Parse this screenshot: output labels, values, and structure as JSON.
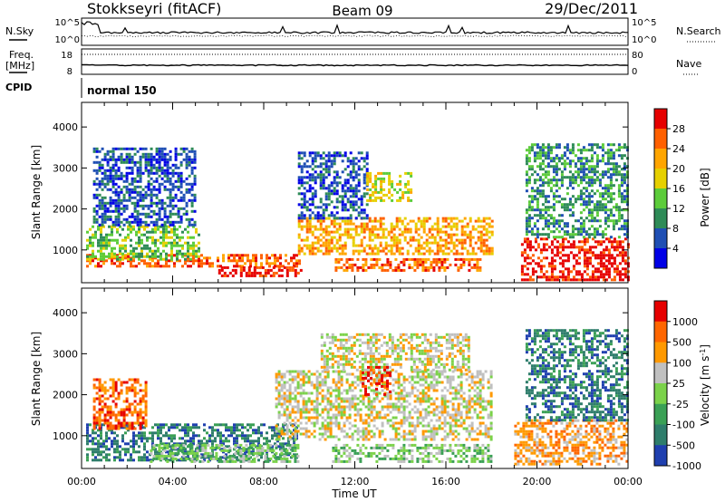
{
  "header": {
    "station": "Stokkseyri (fitACF)",
    "beam": "Beam 09",
    "date": "29/Dec/2011"
  },
  "summary_panels": {
    "nsky": {
      "left_label": "N.Sky",
      "left_ticks": [
        "10^5",
        "10^0"
      ],
      "right_ticks": [
        "10^5",
        "10^0"
      ],
      "right_label": "N.Search"
    },
    "freq": {
      "left_label_line1": "Freq.",
      "left_label_line2": "[MHz]",
      "left_ticks": [
        "18",
        "8"
      ],
      "right_ticks": [
        "80",
        "0"
      ],
      "right_label": "Nave"
    },
    "cpid": {
      "label": "CPID",
      "value": "normal 150"
    }
  },
  "chart_data": [
    {
      "type": "heatmap",
      "name": "power",
      "ylabel": "Slant Range [km]",
      "yticks": [
        "1000",
        "2000",
        "3000",
        "4000"
      ],
      "ylim": [
        200,
        4600
      ],
      "xlim": [
        0,
        24
      ],
      "colorbar": {
        "title": "Power [dB]",
        "ticks": [
          "4",
          "8",
          "12",
          "16",
          "20",
          "24",
          "28"
        ],
        "colors": [
          "#0000e6",
          "#1f4fb4",
          "#2e8b57",
          "#5ccc3a",
          "#e6d000",
          "#ffa500",
          "#ff6000",
          "#e60000"
        ]
      },
      "regions": [
        {
          "t": [
            0.2,
            9.6
          ],
          "r": [
            600,
            900
          ],
          "level": 6
        },
        {
          "t": [
            6.0,
            9.6
          ],
          "r": [
            350,
            600
          ],
          "level": 7
        },
        {
          "t": [
            0.2,
            5.2
          ],
          "r": [
            800,
            1600
          ],
          "level": 3
        },
        {
          "t": [
            0.5,
            5.0
          ],
          "r": [
            1600,
            3500
          ],
          "level": 1
        },
        {
          "t": [
            9.5,
            18.0
          ],
          "r": [
            900,
            1800
          ],
          "level": 5
        },
        {
          "t": [
            11.0,
            17.5
          ],
          "r": [
            500,
            800
          ],
          "level": 6
        },
        {
          "t": [
            9.5,
            12.5
          ],
          "r": [
            1800,
            3400
          ],
          "level": 1
        },
        {
          "t": [
            12.5,
            14.5
          ],
          "r": [
            2200,
            2900
          ],
          "level": 4
        },
        {
          "t": [
            19.3,
            24.0
          ],
          "r": [
            300,
            1300
          ],
          "level": 7
        },
        {
          "t": [
            19.5,
            24.0
          ],
          "r": [
            1300,
            3600
          ],
          "level": 2
        }
      ]
    },
    {
      "type": "heatmap",
      "name": "velocity",
      "ylabel": "Slant Range [km]",
      "yticks": [
        "1000",
        "2000",
        "3000",
        "4000"
      ],
      "ylim": [
        200,
        4600
      ],
      "xlim": [
        0,
        24
      ],
      "xlabel": "Time UT",
      "xticks": [
        "00:00",
        "04:00",
        "08:00",
        "12:00",
        "16:00",
        "20:00",
        "00:00"
      ],
      "colorbar": {
        "title": "Velocity [m s^-1]",
        "ticks": [
          "1000",
          "500",
          "100",
          "25",
          "-25",
          "-100",
          "-500",
          "-1000"
        ],
        "colors": [
          "#1f3faf",
          "#2e7d6b",
          "#3aa055",
          "#7bd24a",
          "#c0c0c0",
          "#ff9900",
          "#ff6600",
          "#e60000"
        ]
      },
      "regions": [
        {
          "t": [
            0.2,
            9.5
          ],
          "r": [
            400,
            1300
          ],
          "level": 1
        },
        {
          "t": [
            3.0,
            9.5
          ],
          "r": [
            400,
            800
          ],
          "level": 3
        },
        {
          "t": [
            0.5,
            2.8
          ],
          "r": [
            1200,
            2400
          ],
          "level": 6
        },
        {
          "t": [
            8.5,
            18.0
          ],
          "r": [
            900,
            2600
          ],
          "level": 4
        },
        {
          "t": [
            10.5,
            17.0
          ],
          "r": [
            2600,
            3500
          ],
          "level": 4
        },
        {
          "t": [
            12.3,
            13.5
          ],
          "r": [
            2000,
            2700
          ],
          "level": 7
        },
        {
          "t": [
            11.0,
            18.0
          ],
          "r": [
            400,
            800
          ],
          "level": 3
        },
        {
          "t": [
            19.0,
            24.0
          ],
          "r": [
            300,
            1400
          ],
          "level": 5
        },
        {
          "t": [
            19.5,
            24.0
          ],
          "r": [
            1400,
            3600
          ],
          "level": 1
        }
      ]
    }
  ]
}
